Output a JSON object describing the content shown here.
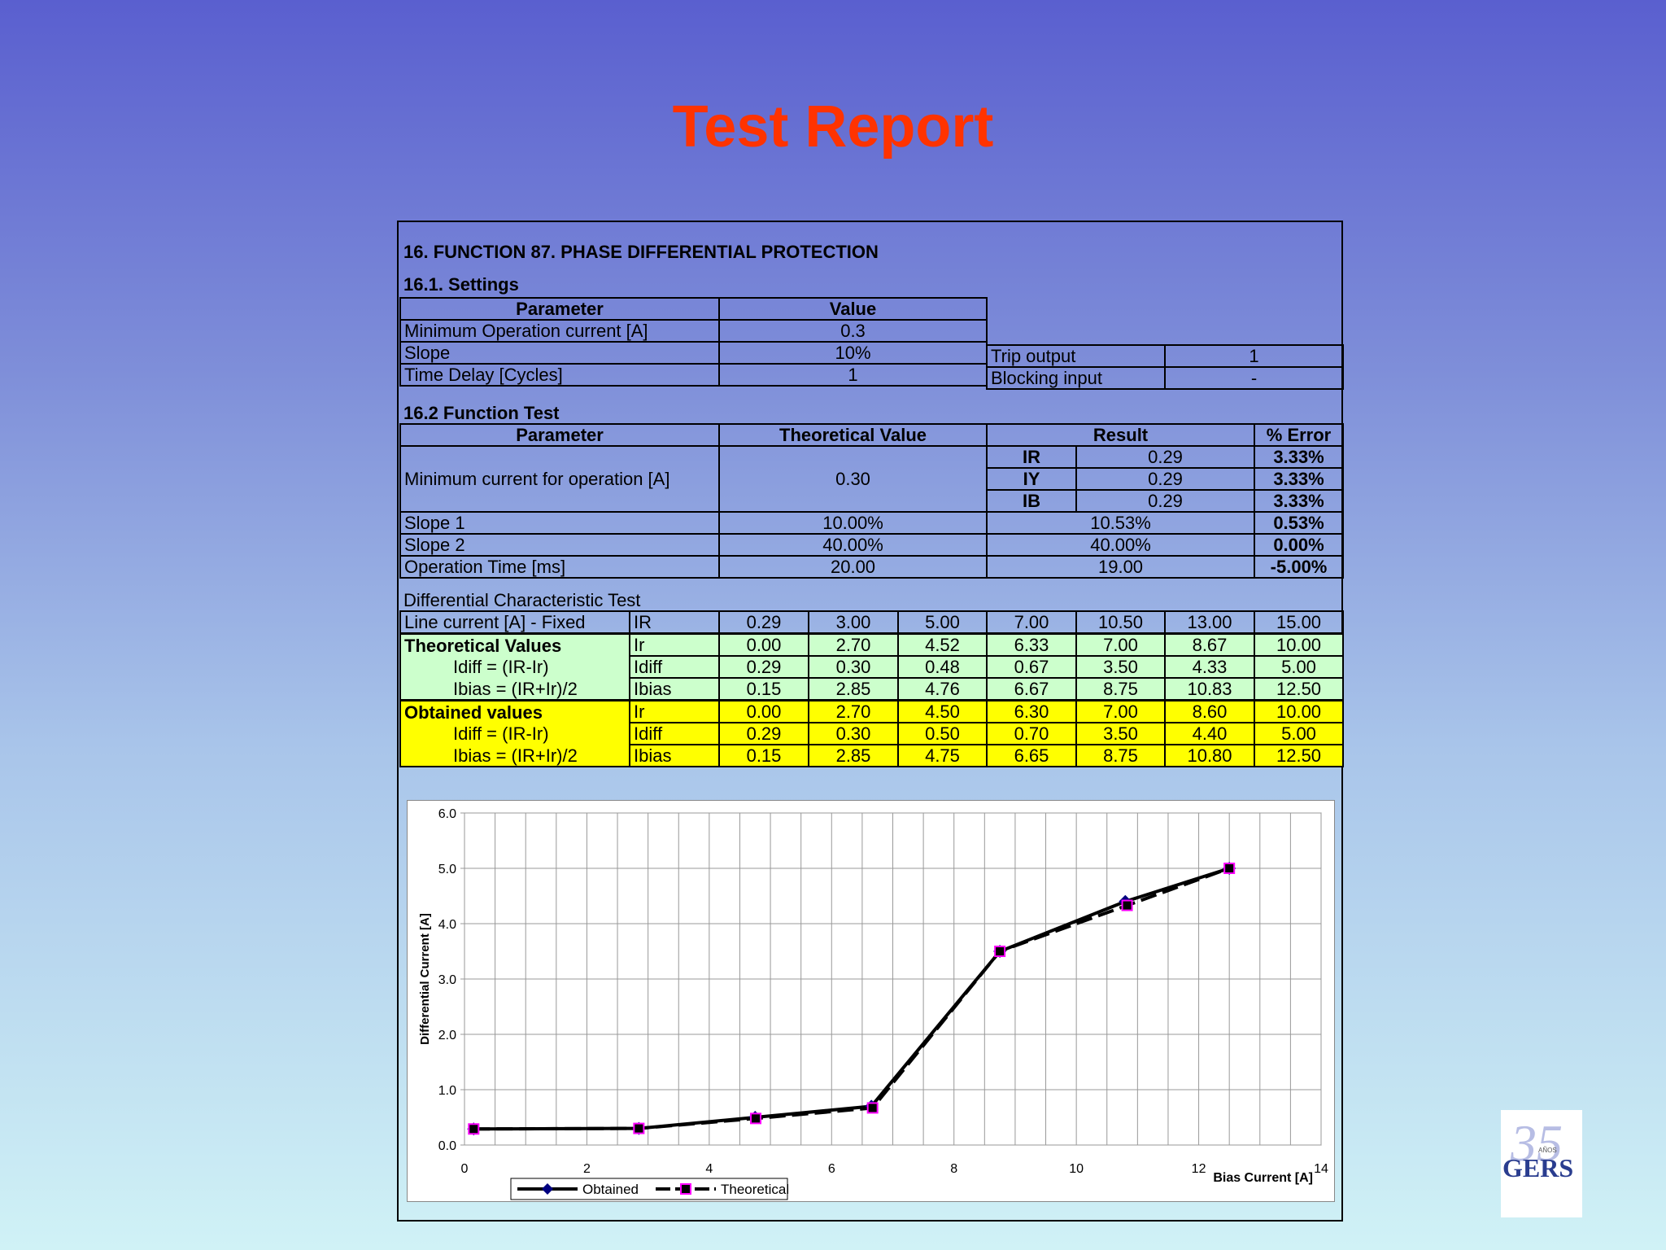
{
  "title": "Test Report",
  "section_title": "16.  FUNCTION 87.   PHASE DIFFERENTIAL PROTECTION",
  "settings": {
    "heading": "16.1.  Settings",
    "col_parameter": "Parameter",
    "col_value": "Value",
    "rows": [
      {
        "param": "Minimum Operation current [A]",
        "value": "0.3"
      },
      {
        "param": "Slope",
        "value": "10%",
        "extra_label": "Trip output",
        "extra_value": "1"
      },
      {
        "param": "Time Delay [Cycles]",
        "value": "1",
        "extra_label": "Blocking input",
        "extra_value": "-"
      }
    ]
  },
  "function_test": {
    "heading": "16.2 Function Test",
    "col_parameter": "Parameter",
    "col_theoretical": "Theoretical Value",
    "col_result": "Result",
    "col_error": "% Error",
    "min_current": {
      "label": "Minimum current for operation  [A]",
      "theoretical": "0.30",
      "phases": [
        {
          "phase": "IR",
          "result": "0.29",
          "error": "3.33%"
        },
        {
          "phase": "IY",
          "result": "0.29",
          "error": "3.33%"
        },
        {
          "phase": "IB",
          "result": "0.29",
          "error": "3.33%"
        }
      ]
    },
    "rows": [
      {
        "param": "Slope 1",
        "theoretical": "10.00%",
        "result": "10.53%",
        "error": "0.53%"
      },
      {
        "param": "Slope 2",
        "theoretical": "40.00%",
        "result": "40.00%",
        "error": "0.00%"
      },
      {
        "param": "Operation Time [ms]",
        "theoretical": "20.00",
        "result": "19.00",
        "error": "-5.00%"
      }
    ]
  },
  "characteristic": {
    "heading": "Differential Characteristic Test",
    "line_label": "Line current [A] - Fixed",
    "line_key": "IR",
    "line_values": [
      "0.29",
      "3.00",
      "5.00",
      "7.00",
      "10.50",
      "13.00",
      "15.00"
    ],
    "theoretical": {
      "label": "Theoretical Values",
      "formula_idiff": "Idiff  =  (IR-Ir)",
      "formula_ibias": "Ibias =  (IR+Ir)/2",
      "rows": [
        {
          "key": "Ir",
          "values": [
            "0.00",
            "2.70",
            "4.52",
            "6.33",
            "7.00",
            "8.67",
            "10.00"
          ]
        },
        {
          "key": "Idiff",
          "values": [
            "0.29",
            "0.30",
            "0.48",
            "0.67",
            "3.50",
            "4.33",
            "5.00"
          ]
        },
        {
          "key": "Ibias",
          "values": [
            "0.15",
            "2.85",
            "4.76",
            "6.67",
            "8.75",
            "10.83",
            "12.50"
          ]
        }
      ]
    },
    "obtained": {
      "label": "Obtained values",
      "formula_idiff": "Idiff  =  (IR-Ir)",
      "formula_ibias": "Ibias =  (IR+Ir)/2",
      "rows": [
        {
          "key": "Ir",
          "values": [
            "0.00",
            "2.70",
            "4.50",
            "6.30",
            "7.00",
            "8.60",
            "10.00"
          ]
        },
        {
          "key": "Idiff",
          "values": [
            "0.29",
            "0.30",
            "0.50",
            "0.70",
            "3.50",
            "4.40",
            "5.00"
          ]
        },
        {
          "key": "Ibias",
          "values": [
            "0.15",
            "2.85",
            "4.75",
            "6.65",
            "8.75",
            "10.80",
            "12.50"
          ]
        }
      ]
    }
  },
  "chart_data": {
    "type": "line",
    "title": "",
    "xlabel": "Bias Current [A]",
    "ylabel": "Differential Current [A]",
    "xlim": [
      0,
      14
    ],
    "ylim": [
      0,
      6
    ],
    "xticks": [
      "0",
      "2",
      "4",
      "6",
      "8",
      "10",
      "12",
      "14"
    ],
    "yticks": [
      "0.0",
      "1.0",
      "2.0",
      "3.0",
      "4.0",
      "5.0",
      "6.0"
    ],
    "grid": true,
    "legend": "bottom-left",
    "series": [
      {
        "name": "Obtained",
        "color": "#000080",
        "marker": "diamond",
        "x": [
          0.15,
          2.85,
          4.75,
          6.65,
          8.75,
          10.8,
          12.5
        ],
        "y": [
          0.29,
          0.3,
          0.5,
          0.7,
          3.5,
          4.4,
          5.0
        ]
      },
      {
        "name": "Theoretical",
        "color": "#ff00ff",
        "marker": "square",
        "dashed": true,
        "x": [
          0.15,
          2.85,
          4.76,
          6.67,
          8.75,
          10.83,
          12.5
        ],
        "y": [
          0.29,
          0.3,
          0.48,
          0.67,
          3.5,
          4.33,
          5.0
        ]
      }
    ]
  },
  "logo": {
    "text": "GERS",
    "small_text": "AÑOS",
    "number": "35"
  },
  "colors": {
    "title": "#ff3300",
    "theoretical_bg": "#ccffcc",
    "obtained_bg": "#ffff00"
  }
}
